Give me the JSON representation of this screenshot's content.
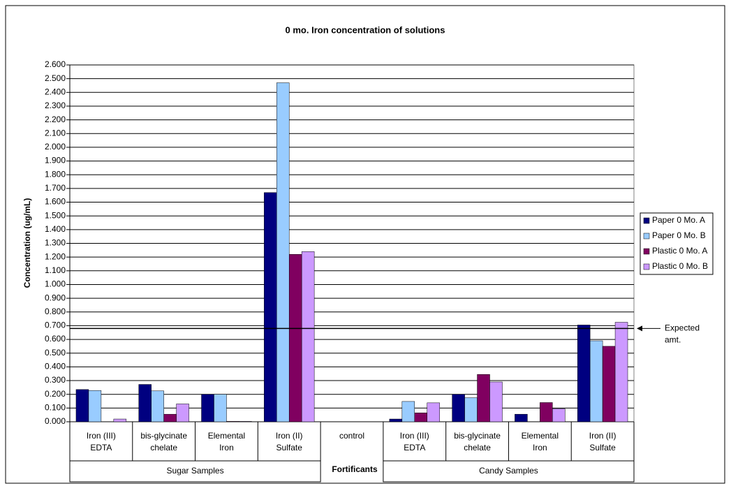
{
  "chart_data": {
    "type": "bar",
    "title": "0 mo. Iron concentration of solutions",
    "y_label": "Concentration (ug/mL)",
    "x_label": "Fortificants",
    "categories": [
      [
        "Iron (III)",
        "EDTA"
      ],
      [
        "bis-glycinate",
        "chelate"
      ],
      [
        "Elemental",
        "Iron"
      ],
      [
        "Iron (II)",
        "Sulfate"
      ],
      [
        "control"
      ],
      [
        "Iron (III)",
        "EDTA"
      ],
      [
        "bis-glycinate",
        "chelate"
      ],
      [
        "Elemental",
        "Iron"
      ],
      [
        "Iron (II)",
        "Sulfate"
      ]
    ],
    "groups": [
      {
        "name": "Sugar Samples",
        "start": 0,
        "end": 3
      },
      {
        "name": "Candy Samples",
        "start": 5,
        "end": 8
      }
    ],
    "series": [
      {
        "name": "Paper 0 Mo. A",
        "color": "#000080",
        "values": [
          0.235,
          0.272,
          0.2,
          1.67,
          0,
          0.02,
          0.2,
          0.055,
          0.705
        ]
      },
      {
        "name": "Paper 0 Mo. B",
        "color": "#99ccff",
        "values": [
          0.228,
          0.225,
          0.2,
          2.47,
          0,
          0.148,
          0.175,
          0,
          0.59
        ]
      },
      {
        "name": "Plastic 0 Mo. A",
        "color": "#800060",
        "values": [
          0,
          0.055,
          0.003,
          1.22,
          0,
          0.065,
          0.345,
          0.14,
          0.55
        ]
      },
      {
        "name": "Plastic 0 Mo. B",
        "color": "#cc99ff",
        "values": [
          0.02,
          0.13,
          0.003,
          1.24,
          0,
          0.138,
          0.29,
          0.095,
          0.725
        ]
      }
    ],
    "reference_line": {
      "value": 0.68,
      "label": [
        "Expected",
        "amt."
      ]
    },
    "ylim": [
      0,
      2.6
    ],
    "yticks": [
      {
        "value": 0,
        "label": "0.000"
      },
      {
        "value": 0.1,
        "label": "0.100"
      },
      {
        "value": 0.2,
        "label": "0.200"
      },
      {
        "value": 0.3,
        "label": "0.300"
      },
      {
        "value": 0.4,
        "label": "0.400"
      },
      {
        "value": 0.5,
        "label": "0.500"
      },
      {
        "value": 0.6,
        "label": "0.600"
      },
      {
        "value": 0.7,
        "label": "0.700"
      },
      {
        "value": 0.8,
        "label": "0.800"
      },
      {
        "value": 0.9,
        "label": "0.900"
      },
      {
        "value": 1.0,
        "label": "1.000"
      },
      {
        "value": 1.1,
        "label": "1.100"
      },
      {
        "value": 1.2,
        "label": "1.200"
      },
      {
        "value": 1.3,
        "label": "1.300"
      },
      {
        "value": 1.4,
        "label": "1.400"
      },
      {
        "value": 1.5,
        "label": "1.500"
      },
      {
        "value": 1.6,
        "label": "1.600"
      },
      {
        "value": 1.7,
        "label": "1.700"
      },
      {
        "value": 1.8,
        "label": "1.800"
      },
      {
        "value": 1.9,
        "label": "1.900"
      },
      {
        "value": 2.0,
        "label": "2.000"
      },
      {
        "value": 2.1,
        "label": "2.100"
      },
      {
        "value": 2.2,
        "label": "2.200"
      },
      {
        "value": 2.3,
        "label": "2.300"
      },
      {
        "value": 2.4,
        "label": "2.400"
      },
      {
        "value": 2.5,
        "label": "2.500"
      },
      {
        "value": 2.6,
        "label": "2.600"
      }
    ],
    "grid": true,
    "legend": "right"
  }
}
